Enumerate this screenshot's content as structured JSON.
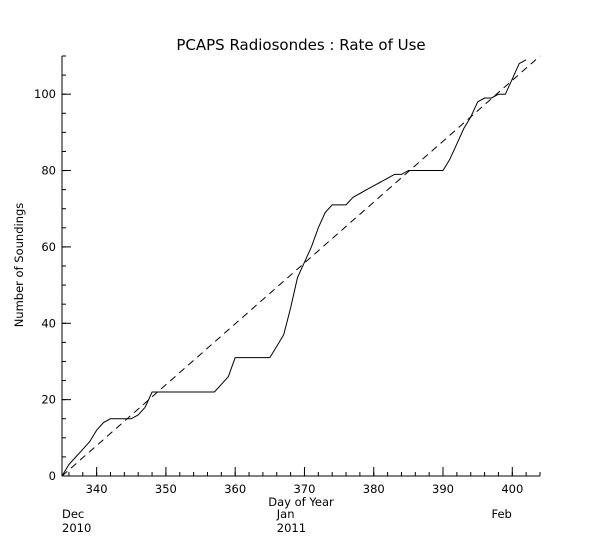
{
  "chart_data": {
    "type": "line",
    "title": "PCAPS Radiosondes : Rate of Use",
    "xlabel": "Day of Year",
    "ylabel": "Number of Soundings",
    "xlim": [
      335,
      404
    ],
    "ylim": [
      0,
      110
    ],
    "x_ticks": [
      340,
      350,
      360,
      370,
      380,
      390,
      400
    ],
    "y_ticks": [
      0,
      20,
      40,
      60,
      80,
      100
    ],
    "x_minor_step": 2,
    "y_minor_step": 5,
    "month_labels": [
      {
        "month": "Dec",
        "year": "2010",
        "x": 335
      },
      {
        "month": "Jan",
        "year": "2011",
        "x": 366
      },
      {
        "month": "Feb",
        "year": "",
        "x": 397
      }
    ],
    "grid": false,
    "colors": {
      "line": "#000000",
      "axes": "#000000",
      "background": "#ffffff"
    },
    "series": [
      {
        "style": "solid",
        "x": [
          335,
          336,
          337,
          338,
          339,
          340,
          341,
          342,
          343,
          344,
          345,
          346,
          347,
          348,
          349,
          350,
          351,
          352,
          353,
          354,
          355,
          356,
          357,
          358,
          359,
          360,
          361,
          362,
          363,
          364,
          365,
          366,
          367,
          368,
          369,
          370,
          371,
          372,
          373,
          374,
          375,
          376,
          377,
          378,
          379,
          380,
          381,
          382,
          383,
          384,
          385,
          386,
          387,
          388,
          389,
          390,
          391,
          392,
          393,
          394,
          395,
          396,
          397,
          398,
          399,
          400,
          401,
          402
        ],
        "y": [
          0,
          3,
          5,
          7,
          9,
          12,
          14,
          15,
          15,
          15,
          15,
          16,
          18,
          22,
          22,
          22,
          22,
          22,
          22,
          22,
          22,
          22,
          22,
          24,
          26,
          31,
          31,
          31,
          31,
          31,
          31,
          34,
          37,
          44,
          52,
          56,
          60,
          65,
          69,
          71,
          71,
          71,
          73,
          74,
          75,
          76,
          77,
          78,
          79,
          79,
          80,
          80,
          80,
          80,
          80,
          80,
          83,
          87,
          91,
          94,
          98,
          99,
          99,
          100,
          100,
          104,
          108,
          109
        ]
      },
      {
        "style": "dashed",
        "x": [
          335,
          404
        ],
        "y": [
          0,
          110
        ]
      }
    ]
  }
}
